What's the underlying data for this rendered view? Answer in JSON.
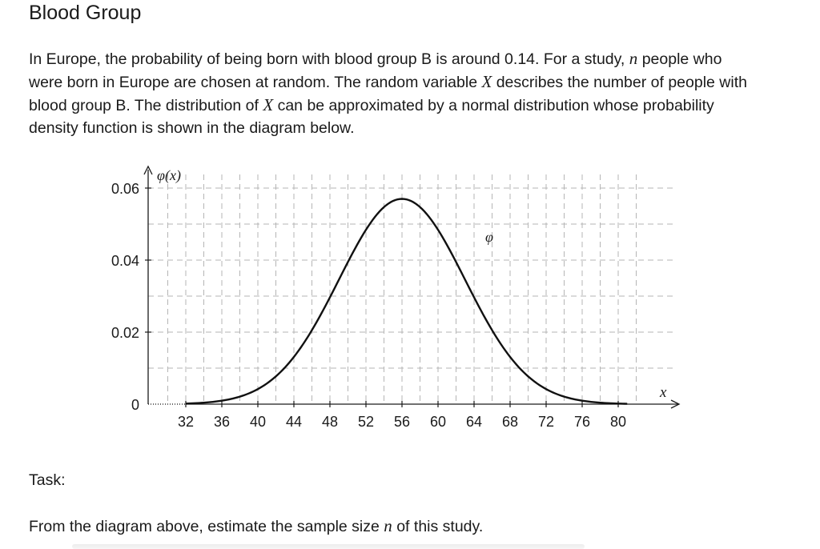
{
  "title": "Blood Group",
  "intro": {
    "p1": "In Europe, the probability of being born with blood group B is around 0.14. For a study, ",
    "n1": "n",
    "p2": " people who were born in Europe are chosen at random. The random variable ",
    "x1": "X",
    "p3": " describes the number of people with blood group B. The distribution of ",
    "x2": "X",
    "p4": " can be approximated by a normal distribution whose probability density function is shown in the diagram below."
  },
  "task": {
    "label": "Task:",
    "q1": "From the diagram above, estimate the sample size ",
    "n": "n",
    "q2": " of this study."
  },
  "chart_data": {
    "type": "line",
    "ylabel": "φ(x)",
    "xlabel": "x",
    "curve_label": "φ",
    "x_ticks": [
      32,
      36,
      40,
      44,
      48,
      52,
      56,
      60,
      64,
      68,
      72,
      76,
      80
    ],
    "y_ticks": [
      0,
      0.02,
      0.04,
      0.06
    ],
    "y_tick_labels": [
      "0",
      "0.02",
      "0.04",
      "0.06"
    ],
    "xlim": [
      28,
      82
    ],
    "ylim": [
      0,
      0.06
    ],
    "grid": true,
    "series": [
      {
        "mean": 56,
        "sd": 7,
        "peak": 0.057
      }
    ]
  }
}
